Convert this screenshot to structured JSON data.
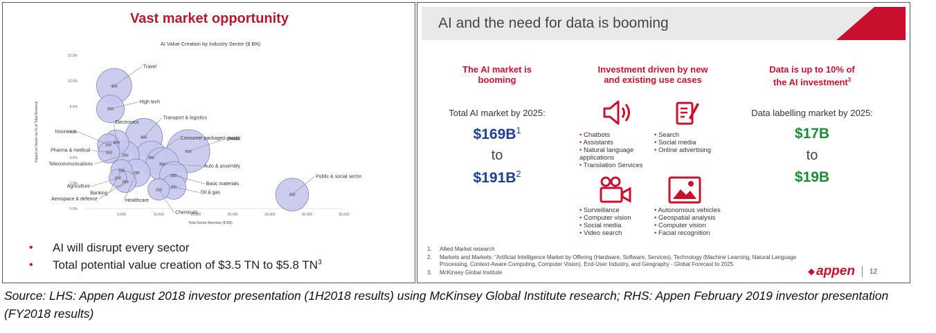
{
  "left": {
    "title": "Vast market opportunity",
    "bullets": [
      "AI will disrupt every sector",
      "Total potential value creation of $3.5 TN to $5.8 TN"
    ],
    "bullet_sup": "3",
    "bullet_color": "#c8102e",
    "title_color": "#b01c2e"
  },
  "chart_data": {
    "type": "scatter",
    "title": "AI Value Creation by Industry Sector ($ BN)",
    "xlabel": "Total Sector Revenue ($ BN)",
    "ylabel": "Impact on Sector as % of Total Revenue",
    "xlim": [
      0,
      35000
    ],
    "ylim": [
      0,
      12
    ],
    "x_ticks": [
      "5,000",
      "10,000",
      "15,000",
      "20,000",
      "25,000",
      "30,000",
      "35,000"
    ],
    "y_ticks": [
      "0.0%",
      "2.0%",
      "4.0%",
      "6.0%",
      "8.0%",
      "10.0%",
      "12.0%"
    ],
    "bubble_color": "#c6c8ec",
    "points": [
      {
        "name": "Travel",
        "x": 4000,
        "y": 9.6,
        "value": 400,
        "value_label": "400"
      },
      {
        "name": "High tech",
        "x": 3500,
        "y": 7.8,
        "value": 250,
        "value_label": "250"
      },
      {
        "name": "Transport & logistics",
        "x": 8000,
        "y": 5.6,
        "value": 450,
        "value_label": "450"
      },
      {
        "name": "Consumer packaged goods",
        "x": 9000,
        "y": 4.0,
        "value": 350,
        "value_label": "350"
      },
      {
        "name": "Retail",
        "x": 14000,
        "y": 4.5,
        "value": 600,
        "value_label": "600"
      },
      {
        "name": "Insurance",
        "x": 3200,
        "y": 5.0,
        "value": 150,
        "value_label": "150"
      },
      {
        "name": "Electronics",
        "x": 4300,
        "y": 5.2,
        "value": 200,
        "value_label": "200"
      },
      {
        "name": "Pharma & medical",
        "x": 3300,
        "y": 4.4,
        "value": 150,
        "value_label": "150"
      },
      {
        "name": "Telecommunications",
        "x": 5500,
        "y": 4.2,
        "value": 250,
        "value_label": "250"
      },
      {
        "name": "Agriculture",
        "x": 4500,
        "y": 2.4,
        "value": 100,
        "value_label": "100"
      },
      {
        "name": "Banking",
        "x": 5000,
        "y": 3.0,
        "value": 150,
        "value_label": "150"
      },
      {
        "name": "Aerospace & defence",
        "x": 5500,
        "y": 2.1,
        "value": 150,
        "value_label": "150"
      },
      {
        "name": "Healthcare",
        "x": 7000,
        "y": 2.8,
        "value": 250,
        "value_label": "250"
      },
      {
        "name": "Auto & assembly",
        "x": 10500,
        "y": 3.5,
        "value": 350,
        "value_label": "350"
      },
      {
        "name": "Basic materials",
        "x": 12000,
        "y": 2.6,
        "value": 250,
        "value_label": "250"
      },
      {
        "name": "Oil & gas",
        "x": 12000,
        "y": 1.7,
        "value": 200,
        "value_label": "200"
      },
      {
        "name": "Chemicals",
        "x": 10000,
        "y": 1.5,
        "value": 150,
        "value_label": "150"
      },
      {
        "name": "Public & social sector",
        "x": 28000,
        "y": 1.1,
        "value": 350,
        "value_label": "350"
      }
    ]
  },
  "right": {
    "header_title": "AI and the need for data is booming",
    "col1": {
      "heading": [
        "The AI market is",
        "booming"
      ],
      "label": "Total AI market by 2025:",
      "low": "$169B",
      "low_sup": "1",
      "to": "to",
      "high": "$191B",
      "high_sup": "2"
    },
    "col2": {
      "heading": [
        "Investment driven by new",
        "and existing use cases"
      ],
      "q1": [
        "Chatbots",
        "Assistants",
        "Natural language applications",
        "Translation Services"
      ],
      "q2": [
        "Search",
        "Social media",
        "Online advertising"
      ],
      "q3": [
        "Surveillance",
        "Computer vision",
        "Social media",
        "Video search"
      ],
      "q4": [
        "Autonomous vehicles",
        "Geospatial analysis",
        "Computer vision",
        "Facial recognition"
      ]
    },
    "col3": {
      "heading": [
        "Data is up to 10% of",
        "the AI investment"
      ],
      "heading_sup": "3",
      "label": "Data labelling market by 2025:",
      "low": "$17B",
      "to": "to",
      "high": "$19B"
    },
    "footnotes": [
      {
        "n": "1.",
        "text": "Allied Market research"
      },
      {
        "n": "2.",
        "text": "Markets and Markets: \"Artificial Intelligence Market by Offering (Hardware, Software, Services), Technology (Machine Learning, Natural Language Processing, Context-Aware Computing, Computer Vision), End-User Industry, and Geography - Global Forecast to 2025"
      },
      {
        "n": "3.",
        "text": "McKinsey Global Institute"
      }
    ],
    "logo": "appen",
    "page_number": "12",
    "accent": "#c8102e",
    "blue": "#1c3f94",
    "green": "#1d8a3a"
  },
  "caption": "Source: LHS: Appen August 2018 investor presentation (1H2018 results) using McKinsey Global Institute research; RHS: Appen February 2019 investor presentation (FY2018 results)"
}
